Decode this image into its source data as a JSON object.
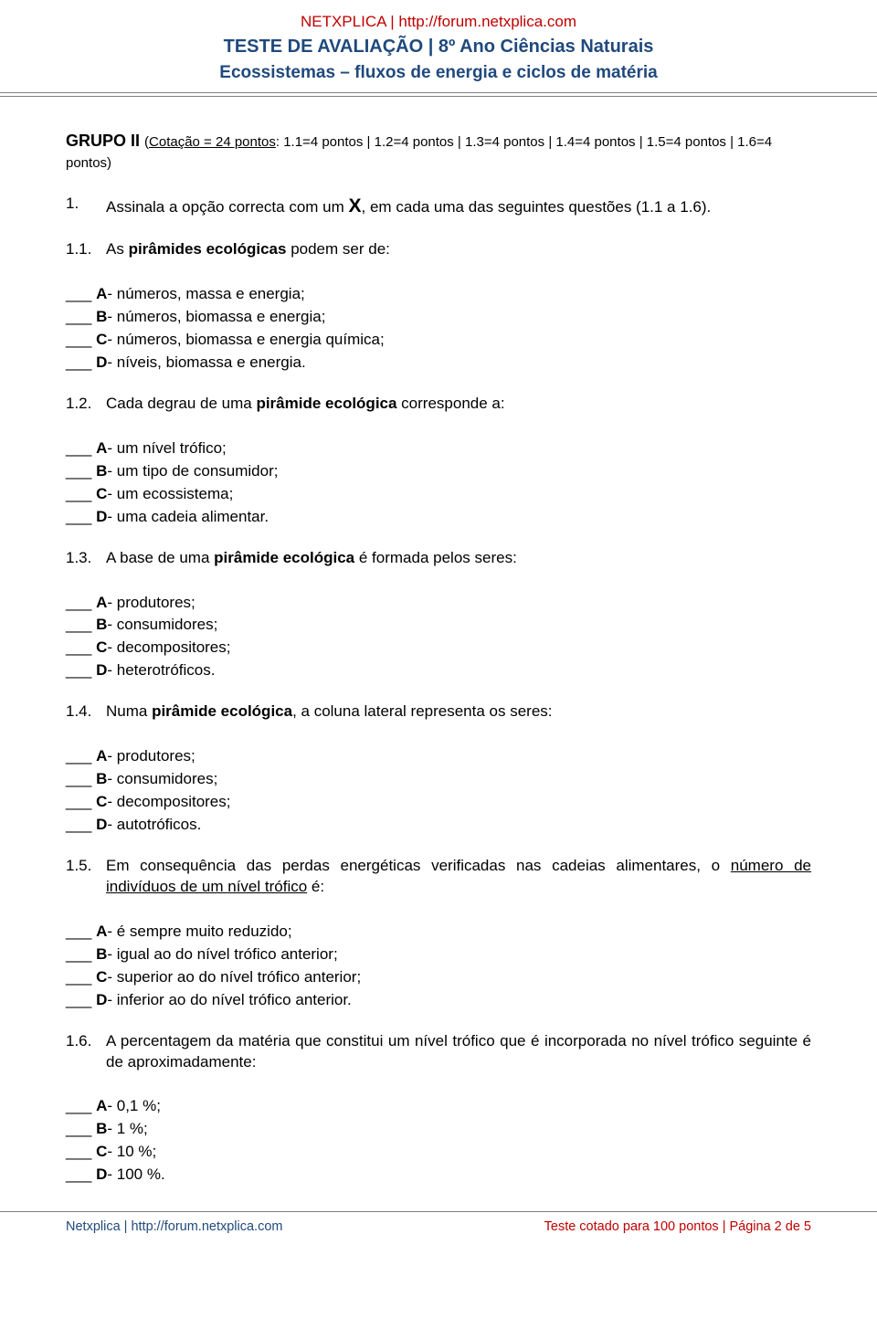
{
  "header": {
    "line1": "NETXPLICA | http://forum.netxplica.com",
    "line2": "TESTE DE AVALIAÇÃO | 8º Ano Ciências Naturais",
    "line3": "Ecossistemas – fluxos de energia e ciclos de matéria"
  },
  "group": {
    "title": "GRUPO II ",
    "sub_prefix": "(",
    "sub_underline": "Cotação = 24 pontos",
    "sub_rest": ": 1.1=4 pontos | 1.2=4 pontos | 1.3=4 pontos | 1.4=4 pontos | 1.5=4 pontos | 1.6=4 pontos)"
  },
  "main_instruction": {
    "num": "1.",
    "text_before": "Assinala a opção correcta com um ",
    "x": "X",
    "text_after": ", em cada uma das seguintes questões (1.1 a 1.6)."
  },
  "questions": [
    {
      "num": "1.1.",
      "pre": "As ",
      "bold": "pirâmides ecológicas",
      "post": " podem ser de:",
      "justify": false,
      "options": [
        {
          "l": "A",
          "t": "- números, massa e energia;"
        },
        {
          "l": "B",
          "t": "- números, biomassa e energia;"
        },
        {
          "l": "C",
          "t": "- números, biomassa e energia química;"
        },
        {
          "l": "D",
          "t": "- níveis, biomassa e energia."
        }
      ]
    },
    {
      "num": "1.2.",
      "pre": "Cada degrau de uma ",
      "bold": "pirâmide ecológica",
      "post": " corresponde a:",
      "justify": false,
      "options": [
        {
          "l": "A",
          "t": "- um nível trófico;"
        },
        {
          "l": "B",
          "t": "- um tipo de consumidor;"
        },
        {
          "l": "C",
          "t": "- um ecossistema;"
        },
        {
          "l": "D",
          "t": "- uma cadeia alimentar."
        }
      ]
    },
    {
      "num": "1.3.",
      "pre": "A base de uma ",
      "bold": "pirâmide ecológica",
      "post": " é formada pelos seres:",
      "justify": false,
      "options": [
        {
          "l": "A",
          "t": "- produtores;"
        },
        {
          "l": "B",
          "t": "- consumidores;"
        },
        {
          "l": "C",
          "t": "- decompositores;"
        },
        {
          "l": "D",
          "t": "- heterotróficos."
        }
      ]
    },
    {
      "num": "1.4.",
      "pre": "Numa ",
      "bold": "pirâmide ecológica",
      "post": ", a coluna lateral representa os seres:",
      "justify": false,
      "options": [
        {
          "l": "A",
          "t": "- produtores;"
        },
        {
          "l": "B",
          "t": "- consumidores;"
        },
        {
          "l": "C",
          "t": "- decompositores;"
        },
        {
          "l": "D",
          "t": "- autotróficos."
        }
      ]
    },
    {
      "num": "1.5.",
      "pre": "Em consequência das perdas energéticas verificadas nas cadeias alimentares, o ",
      "underline": "número de indivíduos de um nível trófico",
      "post2": " é:",
      "justify": true,
      "options": [
        {
          "l": "A",
          "t": "- é sempre muito reduzido;"
        },
        {
          "l": "B",
          "t": "- igual ao do nível trófico anterior;"
        },
        {
          "l": "C",
          "t": "- superior ao do nível trófico anterior;"
        },
        {
          "l": "D",
          "t": "- inferior ao do nível trófico anterior."
        }
      ]
    },
    {
      "num": "1.6.",
      "pre": "A percentagem da matéria que constitui um nível trófico que é incorporada no nível trófico seguinte é de aproximadamente:",
      "justify": true,
      "options": [
        {
          "l": "A",
          "t": "- 0,1 %;"
        },
        {
          "l": "B",
          "t": "- 1 %;"
        },
        {
          "l": "C",
          "t": "- 10 %;"
        },
        {
          "l": "D",
          "t": "- 100 %."
        }
      ]
    }
  ],
  "footer": {
    "left": "Netxplica | http://forum.netxplica.com",
    "right": "Teste cotado para 100 pontos |  Página 2 de 5"
  },
  "blank": "___ "
}
